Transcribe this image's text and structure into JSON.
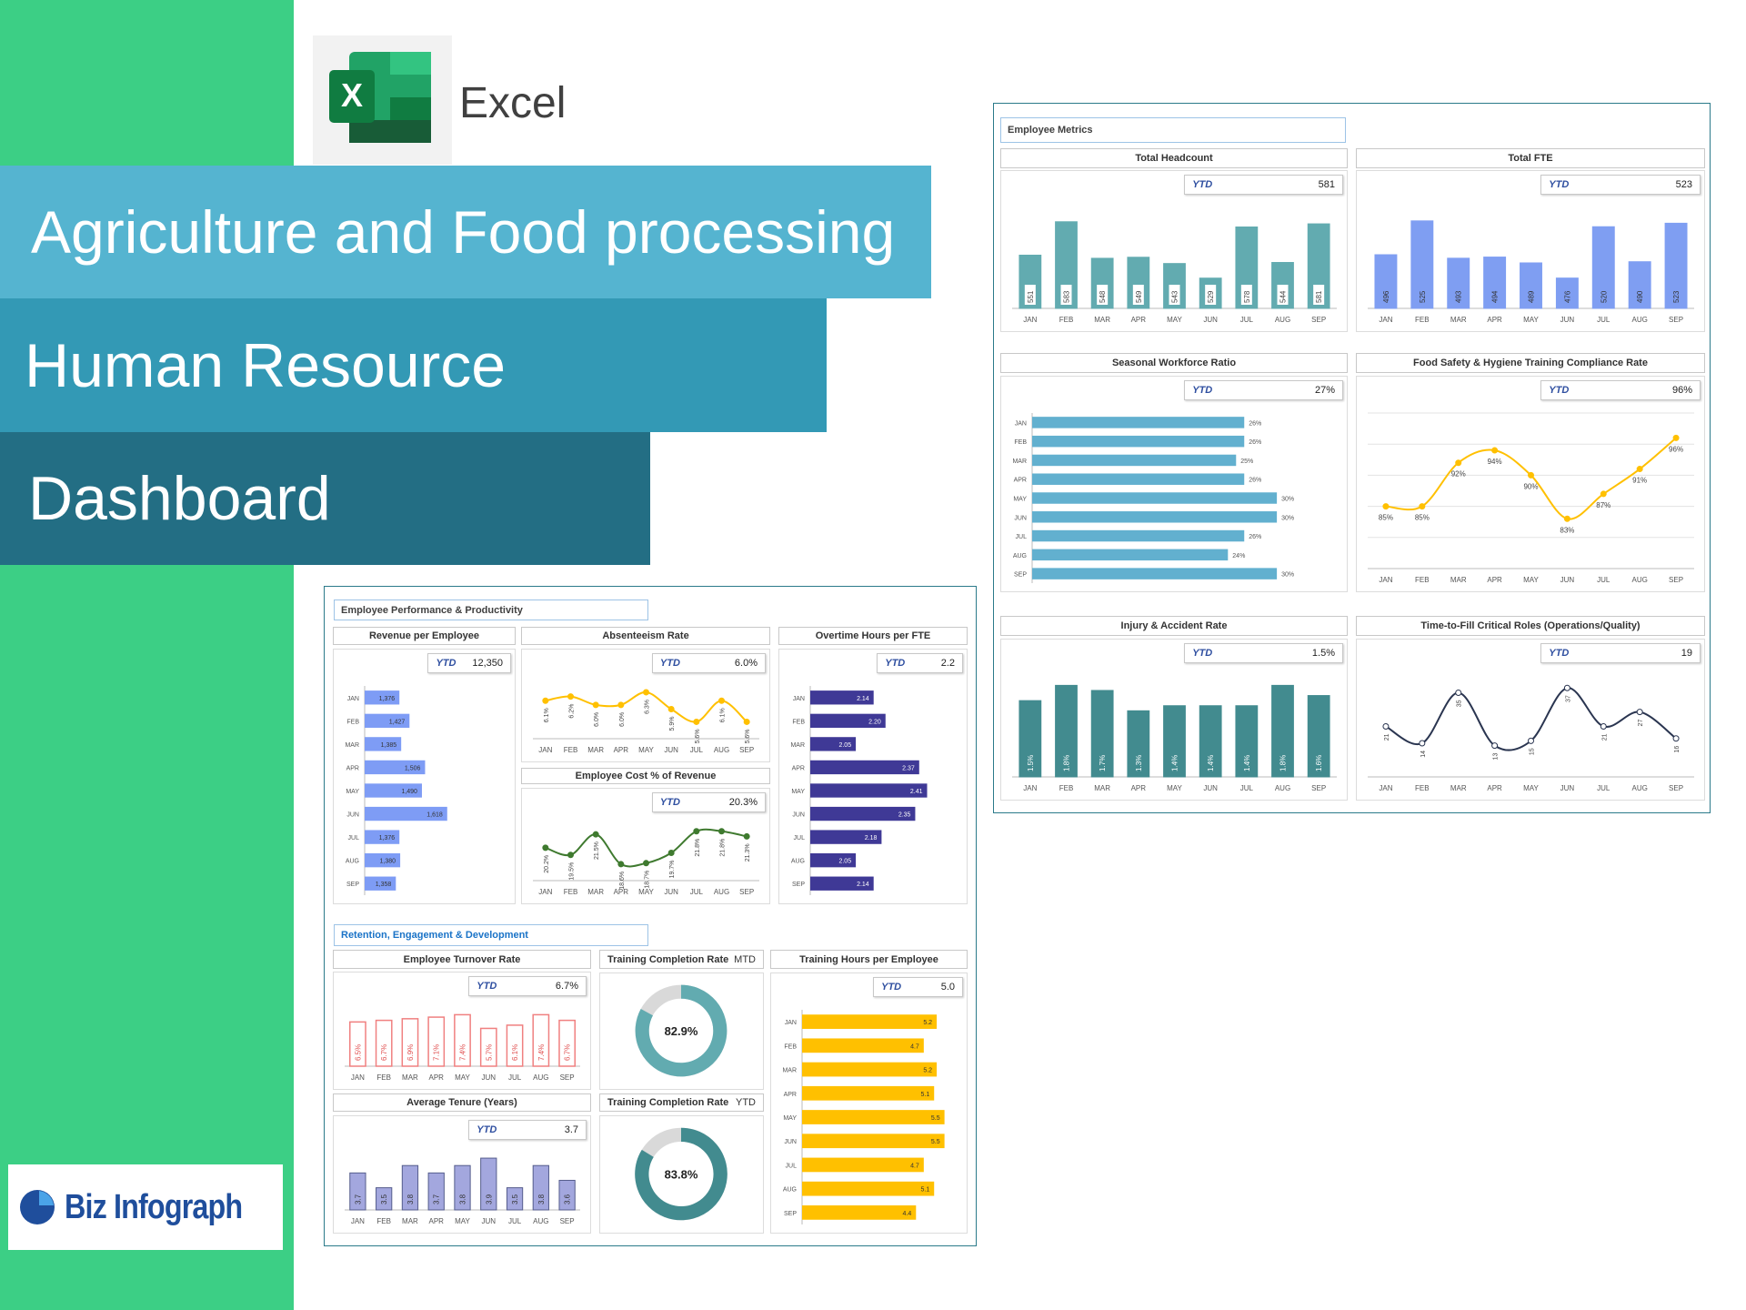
{
  "brand": {
    "app_name": "Excel",
    "app_icon": "excel-icon",
    "logo_text": "Biz Infograph",
    "colors": {
      "green": "#3ccf85",
      "banner1": "#55b4d0",
      "banner2": "#3399b5",
      "banner3": "#236e84",
      "panel_border": "#2b7a8a"
    }
  },
  "title": {
    "line1": "Agriculture and Food processing",
    "line2": "Human Resource",
    "line3": "Dashboard"
  },
  "sections": {
    "metrics": "Employee Metrics",
    "performance": "Employee Performance & Productivity",
    "retention": "Retention, Engagement & Development"
  },
  "months": [
    "JAN",
    "FEB",
    "MAR",
    "APR",
    "MAY",
    "JUN",
    "JUL",
    "AUG",
    "SEP"
  ],
  "chart_data": [
    {
      "title": "Total Headcount",
      "type": "bar",
      "orientation": "vertical",
      "ytd_label": "YTD",
      "ytd_value": "581",
      "values": [
        551,
        583,
        548,
        549,
        543,
        529,
        578,
        544,
        581
      ],
      "value_labels": [
        "551",
        "583",
        "548",
        "549",
        "543",
        "529",
        "578",
        "544",
        "581"
      ],
      "ylim": [
        500,
        595
      ],
      "color": "#62abb0",
      "label_style": "boxed"
    },
    {
      "title": "Total FTE",
      "type": "bar",
      "orientation": "vertical",
      "ytd_label": "YTD",
      "ytd_value": "523",
      "values": [
        496,
        525,
        493,
        494,
        489,
        476,
        520,
        490,
        523
      ],
      "value_labels": [
        "496",
        "525",
        "493",
        "494",
        "489",
        "476",
        "520",
        "490",
        "523"
      ],
      "ylim": [
        450,
        535
      ],
      "color": "#7f9ef2",
      "label_style": "inside-dark"
    },
    {
      "title": "Seasonal Workforce Ratio",
      "type": "bar",
      "orientation": "horizontal",
      "ytd_label": "YTD",
      "ytd_value": "27%",
      "values": [
        26,
        26,
        25,
        26,
        30,
        30,
        26,
        24,
        30
      ],
      "value_labels": [
        "26%",
        "26%",
        "25%",
        "26%",
        "30%",
        "30%",
        "26%",
        "24%",
        "30%"
      ],
      "xlim": [
        0,
        34
      ],
      "color": "#62b0cf",
      "label_style": "outside"
    },
    {
      "title": "Food Safety & Hygiene Training Compliance Rate",
      "type": "line",
      "ytd_label": "YTD",
      "ytd_value": "96%",
      "values": [
        85,
        85,
        92,
        94,
        90,
        83,
        87,
        91,
        96
      ],
      "value_labels": [
        "85%",
        "85%",
        "92%",
        "94%",
        "90%",
        "83%",
        "87%",
        "91%",
        "96%"
      ],
      "ylim": [
        75,
        100
      ],
      "grid": true,
      "color": "#ffc000",
      "label_style": "horizontal"
    },
    {
      "title": "Injury & Accident Rate",
      "type": "bar",
      "orientation": "vertical",
      "ytd_label": "YTD",
      "ytd_value": "1.5%",
      "values": [
        1.5,
        1.8,
        1.7,
        1.3,
        1.4,
        1.4,
        1.4,
        1.8,
        1.6
      ],
      "value_labels": [
        "1.5%",
        "1.8%",
        "1.7%",
        "1.3%",
        "1.4%",
        "1.4%",
        "1.4%",
        "1.8%",
        "1.6%"
      ],
      "ylim": [
        0,
        1.95
      ],
      "color": "#428b8f",
      "label_style": "inside-light"
    },
    {
      "title": "Time-to-Fill Critical Roles (Operations/Quality)",
      "type": "line",
      "ytd_label": "YTD",
      "ytd_value": "19",
      "values": [
        21,
        14,
        35,
        13,
        15,
        37,
        21,
        27,
        16
      ],
      "value_labels": [
        "21",
        "14",
        "35",
        "13",
        "15",
        "37",
        "21",
        "27",
        "16"
      ],
      "ylim": [
        0,
        42
      ],
      "grid": false,
      "color": "#2a3550",
      "marker": "hollow",
      "label_style": "rotated"
    },
    {
      "title": "Revenue per Employee",
      "type": "bar",
      "orientation": "horizontal",
      "ytd_label": "YTD",
      "ytd_value": "12,350",
      "values": [
        1376,
        1427,
        1385,
        1506,
        1490,
        1618,
        1376,
        1380,
        1358
      ],
      "value_labels": [
        "1,376",
        "1,427",
        "1,385",
        "1,506",
        "1,490",
        "1,618",
        "1,376",
        "1,380",
        "1,358"
      ],
      "xlim": [
        1200,
        1900
      ],
      "color": "#7e9cf5",
      "label_style": "inside-dark"
    },
    {
      "title": "Absenteeism Rate",
      "type": "line",
      "ytd_label": "YTD",
      "ytd_value": "6.0%",
      "values": [
        6.1,
        6.2,
        6.0,
        6.0,
        6.3,
        5.9,
        5.6,
        6.1,
        5.6
      ],
      "value_labels": [
        "6.1%",
        "6.2%",
        "6.0%",
        "6.0%",
        "6.3%",
        "5.9%",
        "5.6%",
        "6.1%",
        "5.6%"
      ],
      "ylim": [
        5.2,
        6.45
      ],
      "grid": false,
      "color": "#ffc000",
      "label_style": "rotated"
    },
    {
      "title": "Employee Cost % of Revenue",
      "type": "line",
      "ytd_label": "YTD",
      "ytd_value": "20.3%",
      "values": [
        20.2,
        19.5,
        21.5,
        18.6,
        18.7,
        19.7,
        21.8,
        21.8,
        21.3
      ],
      "value_labels": [
        "20.2%",
        "19.5%",
        "21.5%",
        "18.6%",
        "18.7%",
        "19.7%",
        "21.8%",
        "21.8%",
        "21.3%"
      ],
      "ylim": [
        17,
        22.4
      ],
      "grid": false,
      "color": "#3f7a2f",
      "label_style": "rotated"
    },
    {
      "title": "Overtime Hours per FTE",
      "type": "bar",
      "orientation": "horizontal",
      "ytd_label": "YTD",
      "ytd_value": "2.2",
      "values": [
        2.14,
        2.2,
        2.05,
        2.37,
        2.41,
        2.35,
        2.18,
        2.05,
        2.14
      ],
      "value_labels": [
        "2.14",
        "2.20",
        "2.05",
        "2.37",
        "2.41",
        "2.35",
        "2.18",
        "2.05",
        "2.14"
      ],
      "xlim": [
        1.82,
        2.55
      ],
      "color": "#3f3996",
      "label_style": "inside-light"
    },
    {
      "title": "Employee Turnover Rate",
      "type": "bar",
      "orientation": "vertical",
      "ytd_label": "YTD",
      "ytd_value": "6.7%",
      "values": [
        6.5,
        6.7,
        6.9,
        7.1,
        7.4,
        5.7,
        6.1,
        7.4,
        6.7
      ],
      "value_labels": [
        "6.5%",
        "6.7%",
        "6.9%",
        "7.1%",
        "7.4%",
        "5.7%",
        "6.1%",
        "7.4%",
        "6.7%"
      ],
      "ylim": [
        1,
        7.9
      ],
      "color": "#f08080",
      "outline": true,
      "label_style": "inside-red"
    },
    {
      "title": "Average Tenure (Years)",
      "type": "bar",
      "orientation": "vertical",
      "ytd_label": "YTD",
      "ytd_value": "3.7",
      "values": [
        3.7,
        3.5,
        3.8,
        3.7,
        3.8,
        3.9,
        3.5,
        3.8,
        3.6
      ],
      "value_labels": [
        "3.7",
        "3.5",
        "3.8",
        "3.7",
        "3.8",
        "3.9",
        "3.5",
        "3.8",
        "3.6"
      ],
      "ylim": [
        3.2,
        3.95
      ],
      "color": "#a3a7de",
      "stroke": "#555d8c",
      "label_style": "inside-dark"
    },
    {
      "title": "Training Completion Rate",
      "period": "MTD",
      "type": "pie",
      "donut": true,
      "value": 82.9,
      "value_label": "82.9%",
      "color": "#62abb0",
      "rest_color": "#d9d9d9"
    },
    {
      "title": "Training Completion Rate",
      "period": "YTD",
      "type": "pie",
      "donut": true,
      "value": 83.8,
      "value_label": "83.8%",
      "color": "#428b8f",
      "rest_color": "#d9d9d9"
    },
    {
      "title": "Training Hours per Employee",
      "type": "bar",
      "orientation": "horizontal",
      "ytd_label": "YTD",
      "ytd_value": "5.0",
      "values": [
        5.2,
        4.7,
        5.2,
        5.1,
        5.5,
        5.5,
        4.7,
        5.1,
        4.4
      ],
      "value_labels": [
        "5.2",
        "4.7",
        "5.2",
        "5.1",
        "5.5",
        "5.5",
        "4.7",
        "5.1",
        "4.4"
      ],
      "xlim": [
        0,
        5.9
      ],
      "color": "#ffc000",
      "label_style": "inside-dark"
    }
  ]
}
